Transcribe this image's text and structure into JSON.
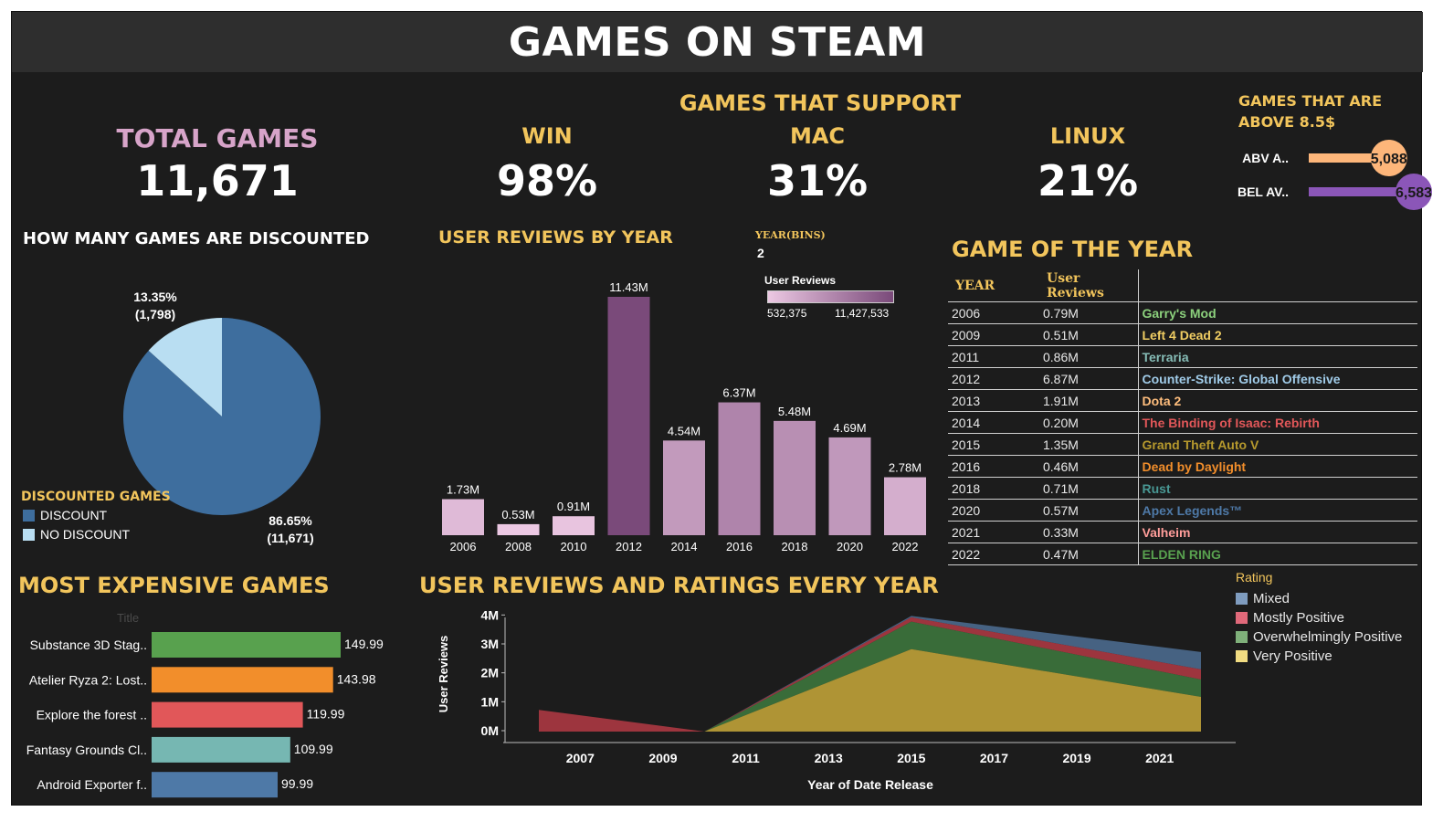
{
  "title": "GAMES ON STEAM",
  "kpis": {
    "total_label": "TOTAL GAMES",
    "total_value": "11,671",
    "support_title": "GAMES THAT SUPPORT",
    "win_label": "WIN",
    "win_value": "98%",
    "mac_label": "MAC",
    "mac_value": "31%",
    "linux_label": "LINUX",
    "linux_value": "21%"
  },
  "colors": {
    "background": "#1c1c1c",
    "title_bar": "#2e2e2e",
    "gold": "#f2c55c",
    "pink": "#d7a4c9",
    "discount": "#3e6e9e",
    "no_discount": "#b9def2"
  },
  "chart_data": [
    {
      "id": "price_split",
      "type": "bar",
      "title": "GAMES THAT ARE ABOVE 8.5$",
      "categories": [
        "ABV A..",
        "BEL AV.."
      ],
      "values": [
        5088,
        6583
      ],
      "labels": [
        "5,088",
        "6,583"
      ],
      "colors": [
        "#fdb67a",
        "#8b56b8"
      ]
    },
    {
      "id": "discount_pie",
      "type": "pie",
      "title": "HOW MANY GAMES ARE DISCOUNTED",
      "legend_title": "DISCOUNTED GAMES",
      "slices": [
        {
          "name": "DISCOUNT",
          "value": 86.65,
          "pct_label": "86.65%",
          "count_label": "(11,671)",
          "color": "#3e6e9e"
        },
        {
          "name": "NO DISCOUNT",
          "value": 13.35,
          "pct_label": "13.35%",
          "count_label": "(1,798)",
          "color": "#b9def2"
        }
      ]
    },
    {
      "id": "reviews_by_year",
      "type": "bar",
      "title": "USER REVIEWS BY YEAR",
      "categories": [
        "2006",
        "2008",
        "2010",
        "2012",
        "2014",
        "2016",
        "2018",
        "2020",
        "2022"
      ],
      "values": [
        1.73,
        0.53,
        0.91,
        11.43,
        4.54,
        6.37,
        5.48,
        4.69,
        2.78
      ],
      "labels": [
        "1.73M",
        "0.53M",
        "0.91M",
        "11.43M",
        "4.54M",
        "6.37M",
        "5.48M",
        "4.69M",
        "2.78M"
      ],
      "ylim": [
        0,
        11.43
      ],
      "color_legend": {
        "title": "User Reviews",
        "min_label": "532,375",
        "max_label": "11,427,533",
        "min_color": "#ecc8e3",
        "max_color": "#7a4a7a"
      },
      "bins_label": "YEAR(BINS)",
      "bins_value": "2"
    },
    {
      "id": "most_expensive",
      "type": "bar",
      "title": "MOST EXPENSIVE GAMES",
      "column_header": "Title",
      "categories": [
        "Substance 3D Stag..",
        "Atelier Ryza 2: Lost..",
        "Explore the forest ..",
        "Fantasy Grounds Cl..",
        "Android Exporter f.."
      ],
      "values": [
        149.99,
        143.98,
        119.99,
        109.99,
        99.99
      ],
      "labels": [
        "149.99",
        "143.98",
        "119.99",
        "109.99",
        "99.99"
      ],
      "colors": [
        "#58a14e",
        "#f28e2b",
        "#e15759",
        "#76b7b2",
        "#4e79a7"
      ]
    },
    {
      "id": "reviews_ratings",
      "type": "area",
      "title": "USER REVIEWS AND RATINGS EVERY YEAR",
      "xlabel": "Year of Date Release",
      "ylabel": "User Reviews",
      "x": [
        2006,
        2010,
        2015,
        2022
      ],
      "x_ticks": [
        "2007",
        "2009",
        "2011",
        "2013",
        "2015",
        "2017",
        "2019",
        "2021"
      ],
      "y_ticks": [
        "0M",
        "1M",
        "2M",
        "3M",
        "4M"
      ],
      "ylim": [
        0,
        4.2
      ],
      "legend_title": "Rating",
      "series": [
        {
          "name": "Very Positive",
          "color": "#c9a93a",
          "values": [
            0,
            0,
            2.85,
            1.2
          ]
        },
        {
          "name": "Overwhelmingly Positive",
          "color": "#3e7a3e",
          "values": [
            0,
            0,
            0.95,
            0.6
          ]
        },
        {
          "name": "Mostly Positive",
          "color": "#b43a44",
          "values": [
            0.75,
            0,
            0.15,
            0.35
          ]
        },
        {
          "name": "Mixed",
          "color": "#4e6e94",
          "values": [
            0,
            0,
            0.05,
            0.6
          ]
        }
      ]
    }
  ],
  "goty": {
    "title": "GAME OF THE YEAR",
    "headers": [
      "YEAR",
      "User Reviews",
      ""
    ],
    "rows": [
      {
        "year": "2006",
        "reviews": "0.79M",
        "game": "Garry's Mod",
        "color": "#8cd17d"
      },
      {
        "year": "2009",
        "reviews": "0.51M",
        "game": "Left 4 Dead 2",
        "color": "#f1ce63"
      },
      {
        "year": "2011",
        "reviews": "0.86M",
        "game": "Terraria",
        "color": "#86bcb6"
      },
      {
        "year": "2012",
        "reviews": "6.87M",
        "game": "Counter-Strike: Global Offensive",
        "color": "#a0cbe8"
      },
      {
        "year": "2013",
        "reviews": "1.91M",
        "game": "Dota 2",
        "color": "#ffbe7d"
      },
      {
        "year": "2014",
        "reviews": "0.20M",
        "game": "The Binding of Isaac: Rebirth",
        "color": "#e15759"
      },
      {
        "year": "2015",
        "reviews": "1.35M",
        "game": "Grand Theft Auto V",
        "color": "#b6992d"
      },
      {
        "year": "2016",
        "reviews": "0.46M",
        "game": "Dead by Daylight",
        "color": "#f28e2b"
      },
      {
        "year": "2018",
        "reviews": "0.71M",
        "game": "Rust",
        "color": "#499894"
      },
      {
        "year": "2020",
        "reviews": "0.57M",
        "game": "Apex Legends™",
        "color": "#4e79a7"
      },
      {
        "year": "2021",
        "reviews": "0.33M",
        "game": "Valheim",
        "color": "#ff9d9a"
      },
      {
        "year": "2022",
        "reviews": "0.47M",
        "game": "ELDEN RING",
        "color": "#59a14f"
      }
    ]
  }
}
